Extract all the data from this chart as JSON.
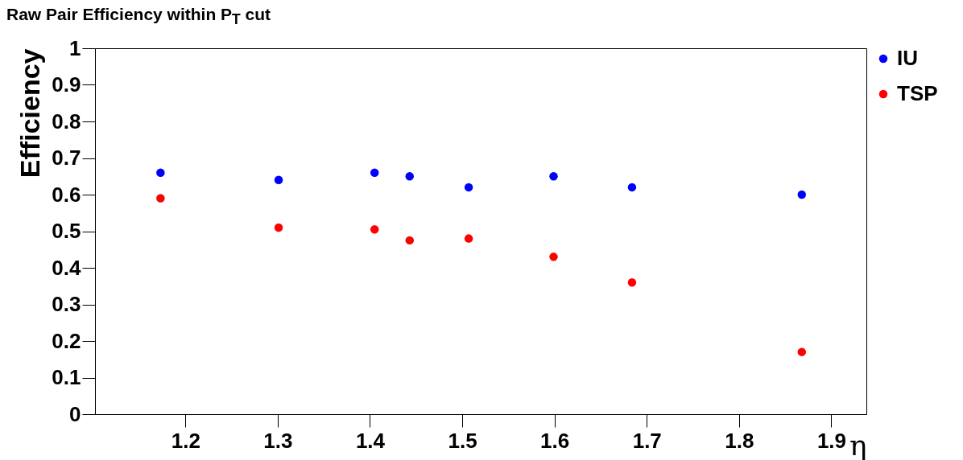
{
  "chart_data": {
    "type": "scatter",
    "title": "Raw Pair Efficiency within P$_{T}$ cut",
    "xlabel": "η",
    "ylabel": "Efficiency",
    "x": [
      1.173,
      1.301,
      1.405,
      1.443,
      1.507,
      1.599,
      1.684,
      1.868
    ],
    "series": [
      {
        "name": "IU",
        "color": "#0000ff",
        "values": [
          0.66,
          0.64,
          0.66,
          0.65,
          0.62,
          0.65,
          0.62,
          0.6
        ]
      },
      {
        "name": "TSP",
        "color": "#ff0000",
        "values": [
          0.59,
          0.51,
          0.505,
          0.475,
          0.48,
          0.43,
          0.36,
          0.17
        ]
      }
    ],
    "xlim": [
      1.102,
      1.938
    ],
    "xticks": [
      1.2,
      1.3,
      1.4,
      1.5,
      1.6,
      1.7,
      1.8,
      1.9
    ],
    "ylim": [
      0,
      1
    ],
    "yticks": [
      {
        "value": 0,
        "label": "0"
      },
      0.1,
      0.2,
      0.3,
      0.4,
      0.5,
      0.6,
      0.7,
      0.8,
      0.9,
      {
        "value": 1,
        "label": "1"
      }
    ],
    "marker": "circle",
    "legend": "top right"
  }
}
